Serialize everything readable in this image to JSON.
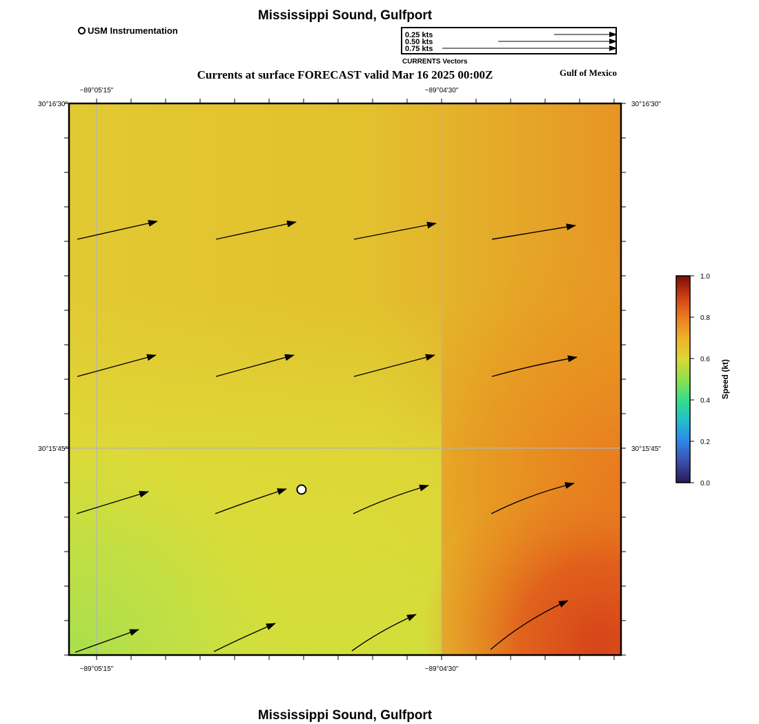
{
  "header": {
    "title": "Mississippi Sound, Gulfport",
    "instrument_legend_label": "USM Instrumentation",
    "vector_legend": {
      "rows": [
        "0.25 kts",
        "0.50 kts",
        "0.75 kts"
      ],
      "caption": "CURRENTS Vectors"
    },
    "forecast_title": "Currents at surface FORECAST valid Mar 16 2025 00:00Z",
    "region_label": "Gulf of Mexico"
  },
  "map": {
    "lon_ticks": [
      "−89°05'15\"",
      "−89°04'30\""
    ],
    "lat_ticks": [
      "30°16'30\"",
      "30°15'45\""
    ],
    "gridlines": true,
    "instrument_site_marker": "open-circle",
    "current_vectors_kts": [
      [
        0.62,
        0.62,
        0.62,
        0.63
      ],
      [
        0.62,
        0.62,
        0.62,
        0.64
      ],
      [
        0.57,
        0.58,
        0.6,
        0.65
      ],
      [
        0.48,
        0.52,
        0.58,
        0.68
      ]
    ]
  },
  "colorbar": {
    "label": "Speed (kt)",
    "ticks": [
      "0.0",
      "0.2",
      "0.4",
      "0.6",
      "0.8",
      "1.0"
    ],
    "range": [
      0.0,
      1.0
    ]
  },
  "footer": {
    "title": "Mississippi Sound, Gulfport"
  },
  "colors": {
    "field_yellow": "#E0CF32",
    "field_green": "#B2DF4A",
    "field_orange": "#E79524",
    "field_red": "#D8471A",
    "gridline": "#B4B4B4"
  },
  "icons": [
    "open-circle-icon",
    "arrow-vector-icon"
  ]
}
